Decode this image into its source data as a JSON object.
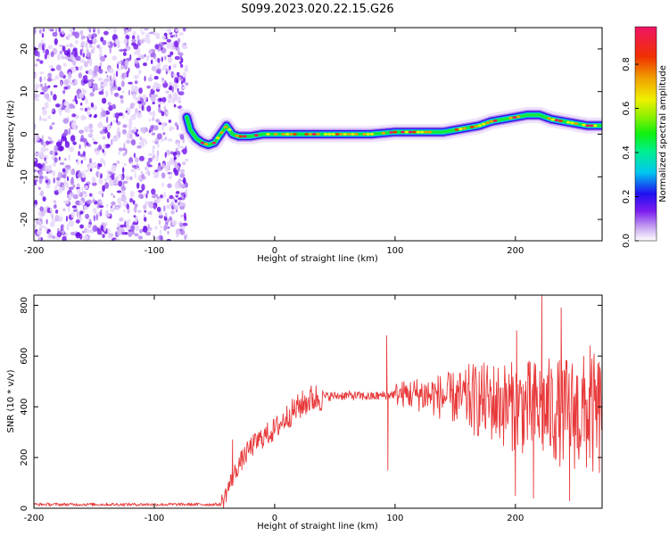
{
  "title": "S099.2023.020.22.15.G26",
  "chart_data": [
    {
      "type": "heatmap",
      "xlabel": "Height of straight line (km)",
      "ylabel": "Frequency (Hz)",
      "xlim": [
        -200,
        272
      ],
      "ylim": [
        -25,
        25
      ],
      "xticks": [
        -200,
        -100,
        0,
        100,
        200
      ],
      "yticks": [
        -20,
        -10,
        0,
        10,
        20
      ],
      "noise_region_x": [
        -200,
        -73
      ],
      "ridge": {
        "x": [
          -73,
          -70,
          -65,
          -60,
          -55,
          -50,
          -45,
          -40,
          -35,
          -30,
          -20,
          -10,
          0,
          20,
          40,
          60,
          80,
          100,
          120,
          140,
          150,
          160,
          170,
          180,
          190,
          200,
          210,
          220,
          230,
          240,
          250,
          260,
          272
        ],
        "y": [
          4,
          1,
          -1,
          -2,
          -2.5,
          -2,
          0,
          2,
          0,
          -0.5,
          -0.5,
          0,
          0,
          0,
          0,
          0,
          0,
          0.5,
          0.5,
          0.5,
          1,
          1.5,
          2,
          3,
          3.5,
          4,
          4.5,
          4.5,
          3.5,
          3,
          2.5,
          2,
          2
        ]
      },
      "colorbar": {
        "label": "Normalized spectral amplitude",
        "ticks": [
          "0.0",
          "0.2",
          "0.4",
          "0.6",
          "0.8"
        ],
        "range": [
          0,
          0.97
        ]
      }
    },
    {
      "type": "line",
      "xlabel": "Height of straight line (km)",
      "ylabel": "SNR (10 * v/v)",
      "xlim": [
        -200,
        272
      ],
      "ylim": [
        0,
        840
      ],
      "xticks": [
        -200,
        -100,
        0,
        100,
        200
      ],
      "yticks": [
        0,
        200,
        400,
        600,
        800
      ],
      "color": "#e8393a",
      "envelope": {
        "x": [
          -200,
          -45,
          -42,
          -35,
          -30,
          -20,
          -10,
          0,
          10,
          20,
          30,
          40,
          60,
          80,
          90,
          100,
          120,
          140,
          160,
          180,
          200,
          220,
          240,
          260,
          272
        ],
        "y": [
          15,
          15,
          40,
          120,
          170,
          240,
          280,
          310,
          360,
          400,
          430,
          440,
          445,
          440,
          445,
          450,
          450,
          440,
          430,
          420,
          400,
          390,
          380,
          370,
          360
        ]
      },
      "spikes": [
        {
          "x": -35,
          "y": 270
        },
        {
          "x": 93,
          "y": 680
        },
        {
          "x": 94,
          "y": 150
        },
        {
          "x": 200,
          "y": 50
        },
        {
          "x": 201,
          "y": 700
        },
        {
          "x": 215,
          "y": 40
        },
        {
          "x": 222,
          "y": 840
        },
        {
          "x": 238,
          "y": 790
        },
        {
          "x": 245,
          "y": 30
        },
        {
          "x": 262,
          "y": 640
        }
      ]
    }
  ]
}
